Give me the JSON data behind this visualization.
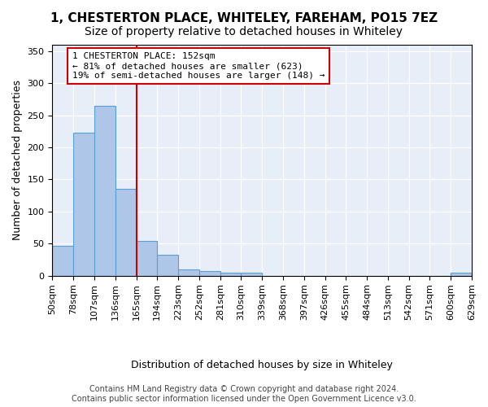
{
  "title": "1, CHESTERTON PLACE, WHITELEY, FAREHAM, PO15 7EZ",
  "subtitle": "Size of property relative to detached houses in Whiteley",
  "xlabel": "Distribution of detached houses by size in Whiteley",
  "ylabel": "Number of detached properties",
  "bar_values": [
    47,
    223,
    265,
    135,
    54,
    33,
    9,
    7,
    4,
    4,
    0,
    0,
    0,
    0,
    0,
    0,
    0,
    0,
    0,
    4
  ],
  "bar_labels": [
    "50sqm",
    "78sqm",
    "107sqm",
    "136sqm",
    "165sqm",
    "194sqm",
    "223sqm",
    "252sqm",
    "281sqm",
    "310sqm",
    "339sqm",
    "368sqm",
    "397sqm",
    "426sqm",
    "455sqm",
    "484sqm",
    "513sqm",
    "542sqm",
    "571sqm",
    "600sqm",
    "629sqm"
  ],
  "bar_color": "#aec6e8",
  "bar_edge_color": "#5a9fd4",
  "vline_x": 3.5,
  "vline_color": "#cc0000",
  "annotation_line1": "1 CHESTERTON PLACE: 152sqm",
  "annotation_line2": "← 81% of detached houses are smaller (623)",
  "annotation_line3": "19% of semi-detached houses are larger (148) →",
  "annotation_box_color": "#cc0000",
  "ylim": [
    0,
    360
  ],
  "yticks": [
    0,
    50,
    100,
    150,
    200,
    250,
    300,
    350
  ],
  "plot_bg_color": "#e8eef8",
  "footer_text": "Contains HM Land Registry data © Crown copyright and database right 2024.\nContains public sector information licensed under the Open Government Licence v3.0.",
  "title_fontsize": 11,
  "subtitle_fontsize": 10,
  "xlabel_fontsize": 9,
  "ylabel_fontsize": 9,
  "tick_fontsize": 8,
  "annotation_fontsize": 8,
  "footer_fontsize": 7
}
